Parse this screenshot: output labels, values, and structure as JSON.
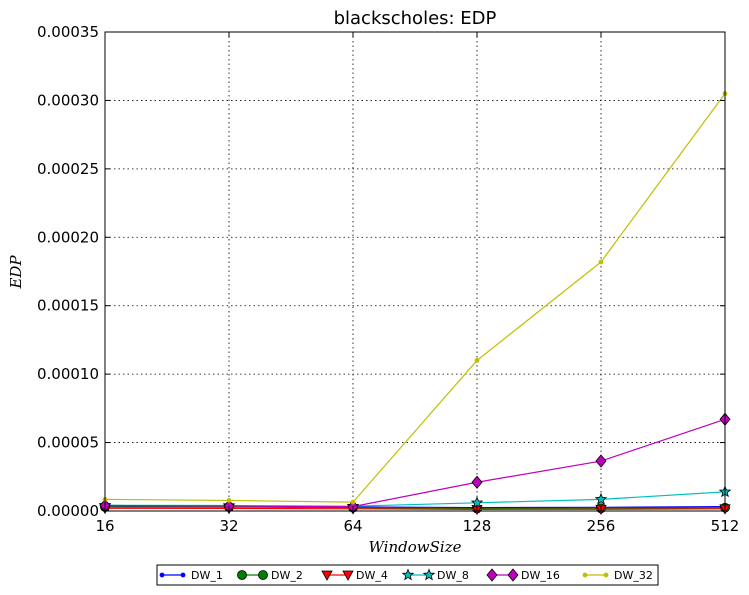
{
  "chart_data": {
    "type": "line",
    "title": "blackscholes: EDP",
    "xlabel": "WindowSize",
    "ylabel": "EDP",
    "x": [
      16,
      32,
      64,
      128,
      256,
      512
    ],
    "x_tick_labels": [
      "16",
      "32",
      "64",
      "128",
      "256",
      "512"
    ],
    "x_scale": "log2",
    "ylim": [
      0,
      0.00035
    ],
    "y_ticks": [
      0,
      5e-05,
      0.0001,
      0.00015,
      0.0002,
      0.00025,
      0.0003,
      0.00035
    ],
    "y_tick_labels": [
      "0.00000",
      "0.00005",
      "0.00010",
      "0.00015",
      "0.00020",
      "0.00025",
      "0.00030",
      "0.00035"
    ],
    "grid": true,
    "legend_position": "bottom-center",
    "series": [
      {
        "name": "DW_1",
        "color": "#0000ff",
        "marker": "point",
        "values": [
          3.8e-06,
          3.6e-06,
          3e-06,
          2.5e-06,
          2.7e-06,
          3.2e-06
        ]
      },
      {
        "name": "DW_2",
        "color": "#008000",
        "marker": "circle",
        "values": [
          3e-06,
          2.9e-06,
          2.4e-06,
          1.8e-06,
          2e-06,
          2.4e-06
        ]
      },
      {
        "name": "DW_4",
        "color": "#ff0000",
        "marker": "triangle-down",
        "values": [
          2e-06,
          1.9e-06,
          1.6e-06,
          1.2e-06,
          1.3e-06,
          1.6e-06
        ]
      },
      {
        "name": "DW_8",
        "color": "#00bfbf",
        "marker": "star",
        "values": [
          4.2e-06,
          4e-06,
          3.5e-06,
          6e-06,
          8.5e-06,
          1.4e-05
        ]
      },
      {
        "name": "DW_16",
        "color": "#bf00bf",
        "marker": "diamond",
        "values": [
          4e-06,
          3.6e-06,
          3.2e-06,
          2.1e-05,
          3.65e-05,
          6.7e-05
        ]
      },
      {
        "name": "DW_32",
        "color": "#bfbf00",
        "marker": "point",
        "values": [
          8.5e-06,
          7.7e-06,
          6.5e-06,
          0.00011,
          0.000182,
          0.000305
        ]
      }
    ]
  }
}
